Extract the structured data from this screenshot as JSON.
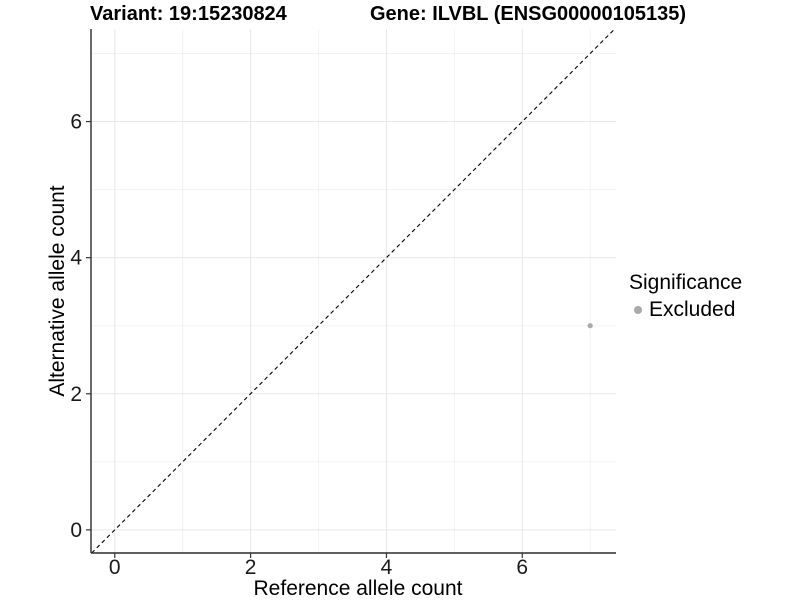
{
  "header": {
    "variant_title": "Variant: 19:15230824",
    "gene_title": "Gene: ILVBL (ENSG00000105135)"
  },
  "chart_data": {
    "type": "scatter",
    "xlabel": "Reference allele count",
    "ylabel": "Alternative allele count",
    "xlim": [
      -0.35,
      7.38
    ],
    "ylim": [
      -0.34,
      7.36
    ],
    "x_ticks": [
      0,
      2,
      4,
      6
    ],
    "y_ticks": [
      0,
      2,
      4,
      6
    ],
    "x_minor_ticks": [
      1,
      3,
      5,
      7
    ],
    "y_minor_ticks": [
      1,
      3,
      5,
      7
    ],
    "grid": true,
    "identity_line": {
      "style": "dashed",
      "from": -0.34,
      "to": 7.36,
      "color": "#000000"
    },
    "series": [
      {
        "name": "Excluded",
        "color": "#a9a9a9",
        "points": [
          {
            "x": 7,
            "y": 3
          }
        ]
      }
    ],
    "legend": {
      "title": "Significance",
      "position": "right",
      "items": [
        {
          "label": "Excluded",
          "color": "#a9a9a9"
        }
      ]
    },
    "colors": {
      "axis_line": "#2b2b2b",
      "tick_mark": "#333333",
      "tick_label": "#1a1a1a",
      "grid_major": "#e7e7e7",
      "grid_minor": "#f2f2f2",
      "background": "#ffffff"
    }
  }
}
